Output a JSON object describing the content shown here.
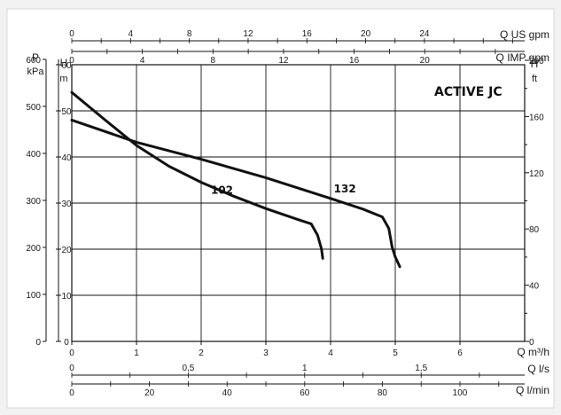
{
  "chart_data": {
    "type": "line",
    "title": "ACTIVE JC",
    "left_axes": [
      {
        "title": "P",
        "unit": "kPa",
        "ticks": [
          0,
          100,
          200,
          300,
          400,
          500,
          600
        ]
      },
      {
        "title": "H",
        "unit": "m",
        "ticks": [
          0,
          10,
          20,
          30,
          40,
          50,
          60
        ]
      }
    ],
    "right_axis": {
      "title": "H",
      "unit": "ft",
      "ticks": [
        0,
        40,
        80,
        120,
        160,
        200
      ]
    },
    "x_axis": {
      "title": "Q m³/h",
      "ticks": [
        "0",
        "1",
        "2",
        "3",
        "4",
        "5",
        "6"
      ],
      "range": [
        0,
        7
      ]
    },
    "y_range_m": [
      0,
      60
    ],
    "secondary_x_axes": [
      {
        "title": "Q US gpm",
        "position": "top",
        "ticks": [
          "0",
          "4",
          "8",
          "12",
          "16",
          "20",
          "24"
        ]
      },
      {
        "title": "Q IMP gpm",
        "position": "top",
        "ticks": [
          "0",
          "4",
          "8",
          "12",
          "16",
          "20"
        ]
      },
      {
        "title": "Q l/s",
        "position": "bottom",
        "ticks": [
          "0",
          "0,5",
          "1",
          "1,5"
        ]
      },
      {
        "title": "Q l/min",
        "position": "bottom",
        "ticks": [
          "0",
          "20",
          "40",
          "60",
          "80",
          "100"
        ]
      }
    ],
    "grid": true,
    "series": [
      {
        "name": "102",
        "x": [
          0,
          0.5,
          1.0,
          1.5,
          2.0,
          2.5,
          3.0,
          3.5,
          3.7,
          3.8,
          3.86,
          3.88
        ],
        "y": [
          54,
          48.2,
          42.5,
          38.0,
          34.5,
          31.5,
          28.8,
          26.4,
          25.5,
          23.0,
          20.0,
          18.0
        ]
      },
      {
        "name": "132",
        "x": [
          0,
          1.0,
          2.0,
          3.0,
          4.0,
          4.5,
          4.8,
          4.9,
          4.95,
          5.0,
          5.07
        ],
        "y": [
          48,
          43.2,
          39.5,
          35.5,
          31.0,
          28.7,
          27.0,
          24.5,
          20.5,
          18.3,
          16.2
        ]
      }
    ]
  }
}
